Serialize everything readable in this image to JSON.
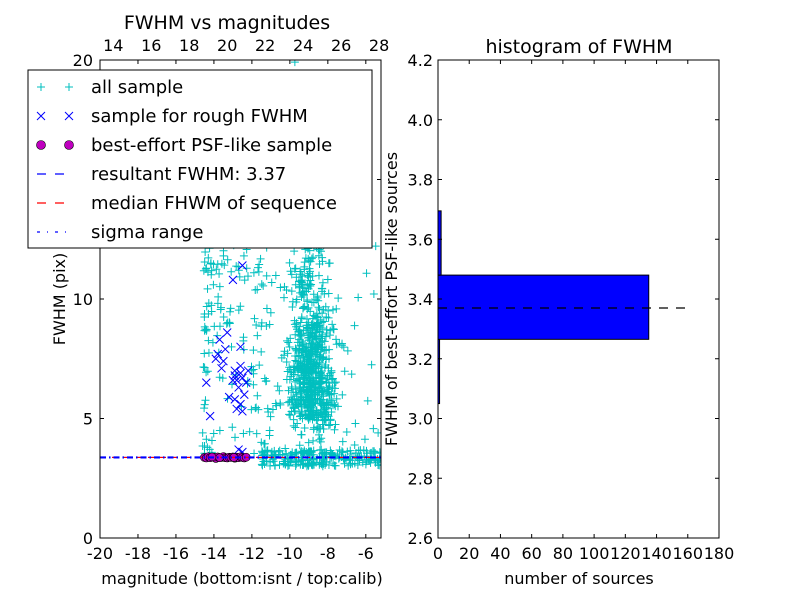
{
  "chart_data": [
    {
      "type": "scatter",
      "title": "FWHM vs magnitudes",
      "xlabel": "magnitude (bottom:isnt / top:calib)",
      "ylabel": "FWHM (pix)",
      "xlim": [
        -20,
        -5.2
      ],
      "ylim": [
        0,
        20
      ],
      "xticks": [
        "-20",
        "-18",
        "-16",
        "-14",
        "-12",
        "-10",
        "-8",
        "-6"
      ],
      "xtick_values": [
        -20,
        -18,
        -16,
        -14,
        -12,
        -10,
        -8,
        -6
      ],
      "yticks": [
        "0",
        "5",
        "10",
        "15",
        "20"
      ],
      "ytick_values": [
        0,
        5,
        10,
        15,
        20
      ],
      "top_axis": {
        "ticks": [
          "14",
          "16",
          "18",
          "20",
          "22",
          "24",
          "26",
          "28"
        ],
        "values": [
          14,
          16,
          18,
          20,
          22,
          24,
          26,
          28
        ],
        "offset": 33.3
      },
      "legend": {
        "placement": "upper-left",
        "entries": [
          {
            "label": "all sample",
            "marker": "+",
            "color": "#00bfbf"
          },
          {
            "label": "sample for rough FWHM",
            "marker": "x",
            "color": "#0000ff"
          },
          {
            "label": "best-effort PSF-like sample",
            "marker": "o",
            "color": "#bf00bf"
          },
          {
            "label": "resultant FWHM: 3.37",
            "marker": "--",
            "color": "#0000ff"
          },
          {
            "label": "median FHWM of sequence",
            "marker": "--",
            "color": "#ff0000"
          },
          {
            "label": "sigma range",
            "marker": "-.",
            "color": "#0000ff"
          }
        ]
      },
      "series": [
        {
          "name": "all sample",
          "color": "#00bfbf",
          "seed": 7,
          "clusters": [
            {
              "n": 90,
              "x": [
                -14.6,
                -14.0
              ],
              "y": [
                3.5,
                18
              ]
            },
            {
              "n": 110,
              "x": [
                -14.0,
                -11.0
              ],
              "y": [
                3.6,
                14.5
              ]
            },
            {
              "n": 650,
              "x_mean": -8.8,
              "x_sd": 0.6,
              "y_mean": 6.0,
              "y_sd": 2.0,
              "y_min": 3.2
            },
            {
              "n": 120,
              "x_mean": -9.2,
              "x_sd": 0.5,
              "y_mean": 11.5,
              "y_sd": 3.0,
              "y_min": 3.2
            },
            {
              "n": 220,
              "x": [
                -11.5,
                -5.2
              ],
              "y": [
                3.0,
                3.7
              ]
            },
            {
              "n": 70,
              "x": [
                -12,
                -5.3
              ],
              "y": [
                3.5,
                14
              ]
            },
            {
              "n": 25,
              "x": [
                -12,
                -6.5
              ],
              "y": [
                14,
                20
              ]
            }
          ]
        },
        {
          "name": "sample for rough FWHM",
          "color": "#0000ff",
          "x": [
            -12.5,
            -13.0,
            -14.4,
            -13.7,
            -13.3,
            -13.5,
            -12.9,
            -12.6,
            -12.8,
            -12.5,
            -12.3,
            -13.8,
            -13.6,
            -12.7,
            -12.4,
            -12.9,
            -12.6,
            -13.2,
            -12.8,
            -12.5,
            -14.2,
            -12.6,
            -13.4,
            -12.2,
            -13.0,
            -12.6,
            -12.9,
            -13.9,
            -12.5,
            -12.7
          ],
          "y": [
            11.4,
            10.8,
            6.5,
            8.3,
            8.6,
            7.4,
            7.0,
            7.2,
            6.6,
            6.7,
            6.5,
            7.7,
            7.1,
            6.3,
            6.0,
            5.8,
            5.6,
            5.9,
            5.4,
            5.3,
            5.1,
            8.0,
            7.9,
            7.0,
            6.6,
            6.9,
            6.8,
            7.5,
            3.6,
            3.7
          ]
        },
        {
          "name": "best-effort PSF-like sample",
          "color": "#bf00bf",
          "x": [
            -14.5,
            -14.4,
            -14.3,
            -14.2,
            -14.0,
            -13.9,
            -13.8,
            -13.6,
            -13.5,
            -13.4,
            -13.3,
            -13.2,
            -13.1,
            -13.0,
            -12.9,
            -12.8,
            -12.7,
            -12.6,
            -12.5,
            -12.4,
            -12.3,
            -13.7,
            -14.1,
            -12.95
          ],
          "y": [
            3.37,
            3.35,
            3.4,
            3.36,
            3.38,
            3.33,
            3.39,
            3.37,
            3.41,
            3.36,
            3.35,
            3.38,
            3.37,
            3.39,
            3.34,
            3.38,
            3.36,
            3.4,
            3.37,
            3.35,
            3.38,
            3.36,
            3.39,
            3.37
          ]
        }
      ],
      "hlines": [
        {
          "name": "resultant FWHM",
          "y": 3.37,
          "style": "dashed",
          "color": "#0000ff"
        },
        {
          "name": "median FHWM of sequence",
          "y": 3.37,
          "style": "dashed",
          "color": "#ff0000"
        },
        {
          "name": "sigma range",
          "y": 3.39,
          "style": "dashdot",
          "color": "#0000ff"
        },
        {
          "name": "sigma range",
          "y": 3.35,
          "style": "dashdot",
          "color": "#0000ff"
        }
      ]
    },
    {
      "type": "bar",
      "orientation": "horizontal",
      "title": "histogram of FWHM",
      "xlabel": "number of sources",
      "ylabel": "FWHM of best-effort PSF-like sources",
      "xlim": [
        0,
        180
      ],
      "ylim": [
        2.6,
        4.2
      ],
      "xticks": [
        "0",
        "20",
        "40",
        "60",
        "80",
        "100",
        "120",
        "140",
        "160",
        "180"
      ],
      "xtick_values": [
        0,
        20,
        40,
        60,
        80,
        100,
        120,
        140,
        160,
        180
      ],
      "yticks": [
        "2.6",
        "2.8",
        "3.0",
        "3.2",
        "3.4",
        "3.6",
        "3.8",
        "4.0",
        "4.2"
      ],
      "ytick_values": [
        2.6,
        2.8,
        3.0,
        3.2,
        3.4,
        3.6,
        3.8,
        4.0,
        4.2
      ],
      "bins": [
        {
          "low": 3.05,
          "high": 3.265,
          "count": 1
        },
        {
          "low": 3.265,
          "high": 3.48,
          "count": 135
        },
        {
          "low": 3.48,
          "high": 3.695,
          "count": 2
        }
      ],
      "bar_color": "#0000ff",
      "hline": {
        "y": 3.37,
        "x_range": [
          0,
          162
        ],
        "style": "dashed",
        "color": "#000000"
      }
    }
  ]
}
